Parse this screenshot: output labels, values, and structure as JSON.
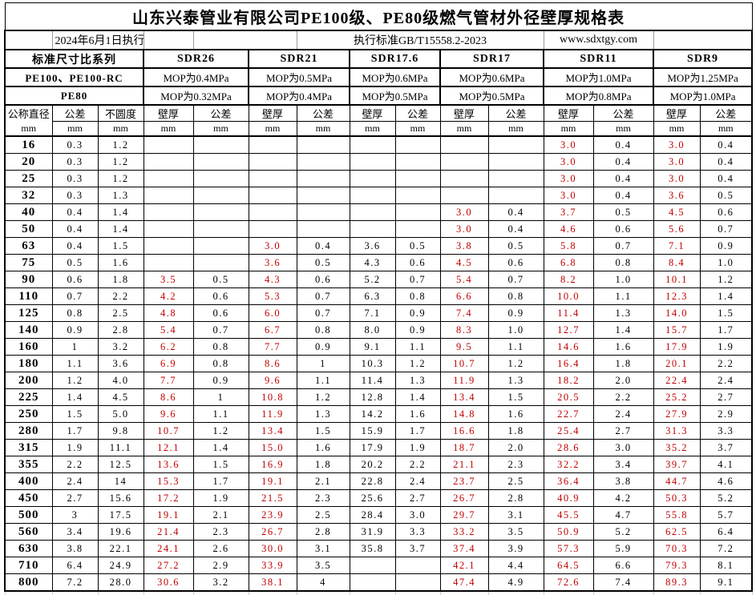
{
  "title": "山东兴泰管业有限公司PE100级、PE80级燃气管材外径壁厚规格表",
  "meta": {
    "effective_date": "2024年6月1日执行",
    "standard": "执行标准GB/T15558.2-2023",
    "website": "www.sdxtgy.com"
  },
  "header": {
    "series_label": "标准尺寸比系列",
    "pe100_label": "PE100、PE100-RC",
    "pe80_label": "PE80"
  },
  "columns": {
    "dn": "公称直径",
    "unit": "mm",
    "tolerance": "公差",
    "ovality": "不圆度",
    "wall": "壁厚"
  },
  "groups": [
    {
      "name": "SDR26",
      "mop_pe100": "MOP为0.4MPa",
      "mop_pe80": "MOP为0.32MPa"
    },
    {
      "name": "SDR21",
      "mop_pe100": "MOP为0.5MPa",
      "mop_pe80": "MOP为0.4MPa"
    },
    {
      "name": "SDR17.6",
      "mop_pe100": "MOP为0.6MPa",
      "mop_pe80": "MOP为0.5MPa"
    },
    {
      "name": "SDR17",
      "mop_pe100": "MOP为0.6MPa",
      "mop_pe80": "MOP为0.5MPa"
    },
    {
      "name": "SDR11",
      "mop_pe100": "MOP为1.0MPa",
      "mop_pe80": "MOP为0.8MPa"
    },
    {
      "name": "SDR9",
      "mop_pe100": "MOP为1.25MPa",
      "mop_pe80": "MOP为1.0MPa"
    }
  ],
  "styles": {
    "wall_red": "#c00000",
    "text_black": "#000000",
    "wall_red_columns": [
      3,
      5,
      9,
      11,
      13
    ]
  },
  "rows": [
    [
      "16",
      "0.3",
      "1.2",
      "",
      "",
      "",
      "",
      "",
      "",
      "",
      "",
      "3.0",
      "0.4",
      "3.0",
      "0.4"
    ],
    [
      "20",
      "0.3",
      "1.2",
      "",
      "",
      "",
      "",
      "",
      "",
      "",
      "",
      "3.0",
      "0.4",
      "3.0",
      "0.4"
    ],
    [
      "25",
      "0.3",
      "1.2",
      "",
      "",
      "",
      "",
      "",
      "",
      "",
      "",
      "3.0",
      "0.4",
      "3.0",
      "0.4"
    ],
    [
      "32",
      "0.3",
      "1.3",
      "",
      "",
      "",
      "",
      "",
      "",
      "",
      "",
      "3.0",
      "0.4",
      "3.6",
      "0.5"
    ],
    [
      "40",
      "0.4",
      "1.4",
      "",
      "",
      "",
      "",
      "",
      "",
      "3.0",
      "0.4",
      "3.7",
      "0.5",
      "4.5",
      "0.6"
    ],
    [
      "50",
      "0.4",
      "1.4",
      "",
      "",
      "",
      "",
      "",
      "",
      "3.0",
      "0.4",
      "4.6",
      "0.6",
      "5.6",
      "0.7"
    ],
    [
      "63",
      "0.4",
      "1.5",
      "",
      "",
      "3.0",
      "0.4",
      "3.6",
      "0.5",
      "3.8",
      "0.5",
      "5.8",
      "0.7",
      "7.1",
      "0.9"
    ],
    [
      "75",
      "0.5",
      "1.6",
      "",
      "",
      "3.6",
      "0.5",
      "4.3",
      "0.6",
      "4.5",
      "0.6",
      "6.8",
      "0.8",
      "8.4",
      "1.0"
    ],
    [
      "90",
      "0.6",
      "1.8",
      "3.5",
      "0.5",
      "4.3",
      "0.6",
      "5.2",
      "0.7",
      "5.4",
      "0.7",
      "8.2",
      "1.0",
      "10.1",
      "1.2"
    ],
    [
      "110",
      "0.7",
      "2.2",
      "4.2",
      "0.6",
      "5.3",
      "0.7",
      "6.3",
      "0.8",
      "6.6",
      "0.8",
      "10.0",
      "1.1",
      "12.3",
      "1.4"
    ],
    [
      "125",
      "0.8",
      "2.5",
      "4.8",
      "0.6",
      "6.0",
      "0.7",
      "7.1",
      "0.9",
      "7.4",
      "0.9",
      "11.4",
      "1.3",
      "14.0",
      "1.5"
    ],
    [
      "140",
      "0.9",
      "2.8",
      "5.4",
      "0.7",
      "6.7",
      "0.8",
      "8.0",
      "0.9",
      "8.3",
      "1.0",
      "12.7",
      "1.4",
      "15.7",
      "1.7"
    ],
    [
      "160",
      "1",
      "3.2",
      "6.2",
      "0.8",
      "7.7",
      "0.9",
      "9.1",
      "1.1",
      "9.5",
      "1.1",
      "14.6",
      "1.6",
      "17.9",
      "1.9"
    ],
    [
      "180",
      "1.1",
      "3.6",
      "6.9",
      "0.8",
      "8.6",
      "1",
      "10.3",
      "1.2",
      "10.7",
      "1.2",
      "16.4",
      "1.8",
      "20.1",
      "2.2"
    ],
    [
      "200",
      "1.2",
      "4.0",
      "7.7",
      "0.9",
      "9.6",
      "1.1",
      "11.4",
      "1.3",
      "11.9",
      "1.3",
      "18.2",
      "2.0",
      "22.4",
      "2.4"
    ],
    [
      "225",
      "1.4",
      "4.5",
      "8.6",
      "1",
      "10.8",
      "1.2",
      "12.8",
      "1.4",
      "13.4",
      "1.5",
      "20.5",
      "2.2",
      "25.2",
      "2.7"
    ],
    [
      "250",
      "1.5",
      "5.0",
      "9.6",
      "1.1",
      "11.9",
      "1.3",
      "14.2",
      "1.6",
      "14.8",
      "1.6",
      "22.7",
      "2.4",
      "27.9",
      "2.9"
    ],
    [
      "280",
      "1.7",
      "9.8",
      "10.7",
      "1.2",
      "13.4",
      "1.5",
      "15.9",
      "1.7",
      "16.6",
      "1.8",
      "25.4",
      "2.7",
      "31.3",
      "3.3"
    ],
    [
      "315",
      "1.9",
      "11.1",
      "12.1",
      "1.4",
      "15.0",
      "1.6",
      "17.9",
      "1.9",
      "18.7",
      "2.0",
      "28.6",
      "3.0",
      "35.2",
      "3.7"
    ],
    [
      "355",
      "2.2",
      "12.5",
      "13.6",
      "1.5",
      "16.9",
      "1.8",
      "20.2",
      "2.2",
      "21.1",
      "2.3",
      "32.2",
      "3.4",
      "39.7",
      "4.1"
    ],
    [
      "400",
      "2.4",
      "14",
      "15.3",
      "1.7",
      "19.1",
      "2.1",
      "22.8",
      "2.4",
      "23.7",
      "2.5",
      "36.4",
      "3.8",
      "44.7",
      "4.6"
    ],
    [
      "450",
      "2.7",
      "15.6",
      "17.2",
      "1.9",
      "21.5",
      "2.3",
      "25.6",
      "2.7",
      "26.7",
      "2.8",
      "40.9",
      "4.2",
      "50.3",
      "5.2"
    ],
    [
      "500",
      "3",
      "17.5",
      "19.1",
      "2.1",
      "23.9",
      "2.5",
      "28.4",
      "3.0",
      "29.7",
      "3.1",
      "45.5",
      "4.7",
      "55.8",
      "5.7"
    ],
    [
      "560",
      "3.4",
      "19.6",
      "21.4",
      "2.3",
      "26.7",
      "2.8",
      "31.9",
      "3.3",
      "33.2",
      "3.5",
      "50.9",
      "5.2",
      "62.5",
      "6.4"
    ],
    [
      "630",
      "3.8",
      "22.1",
      "24.1",
      "2.6",
      "30.0",
      "3.1",
      "35.8",
      "3.7",
      "37.4",
      "3.9",
      "57.3",
      "5.9",
      "70.3",
      "7.2"
    ],
    [
      "710",
      "6.4",
      "24.9",
      "27.2",
      "2.9",
      "33.9",
      "3.5",
      "",
      "",
      "42.1",
      "4.4",
      "64.5",
      "6.6",
      "79.3",
      "8.1"
    ],
    [
      "800",
      "7.2",
      "28.0",
      "30.6",
      "3.2",
      "38.1",
      "4",
      "",
      "",
      "47.4",
      "4.9",
      "72.6",
      "7.4",
      "89.3",
      "9.1"
    ]
  ]
}
